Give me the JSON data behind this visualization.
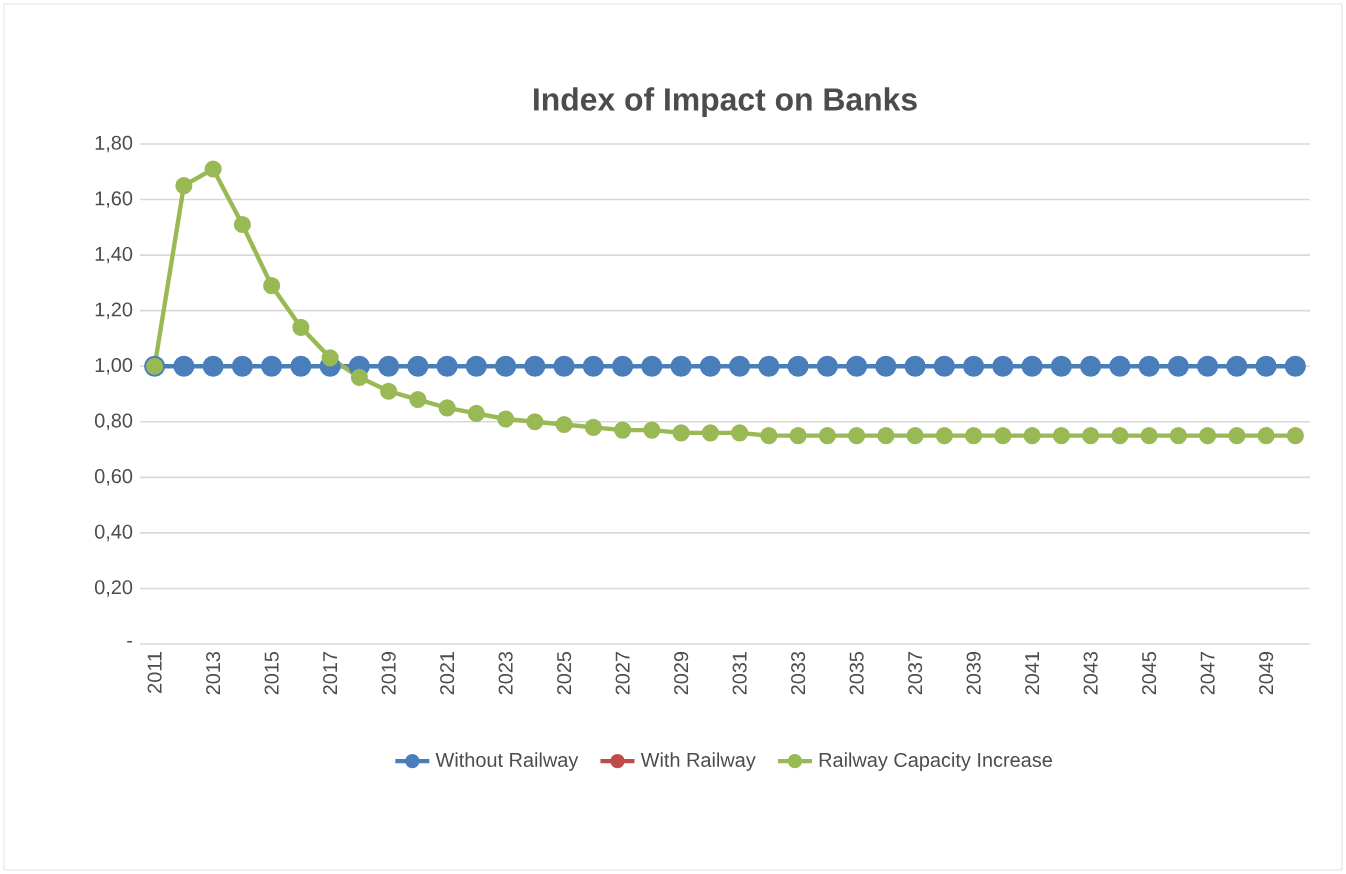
{
  "chart_data": {
    "type": "line",
    "title": "Index of Impact on Banks",
    "categories": [
      "2011",
      null,
      "2013",
      null,
      "2015",
      null,
      "2017",
      null,
      "2019",
      null,
      "2021",
      null,
      "2023",
      null,
      "2025",
      null,
      "2027",
      null,
      "2029",
      null,
      "2031",
      null,
      "2033",
      null,
      "2035",
      null,
      "2037",
      null,
      "2039",
      null,
      "2041",
      null,
      "2043",
      null,
      "2045",
      null,
      "2047",
      null,
      "2049",
      null
    ],
    "series": [
      {
        "name": "Without Railway",
        "color": "#4a7ebb",
        "values": [
          1,
          1,
          1,
          1,
          1,
          1,
          1,
          1,
          1,
          1,
          1,
          1,
          1,
          1,
          1,
          1,
          1,
          1,
          1,
          1,
          1,
          1,
          1,
          1,
          1,
          1,
          1,
          1,
          1,
          1,
          1,
          1,
          1,
          1,
          1,
          1,
          1,
          1,
          1,
          1
        ]
      },
      {
        "name": "With Railway",
        "color": "#be4b48",
        "values": [
          null,
          null,
          null,
          null,
          null,
          null,
          null,
          null,
          null,
          null,
          null,
          null,
          null,
          null,
          null,
          null,
          null,
          null,
          null,
          null,
          null,
          null,
          null,
          null,
          null,
          null,
          null,
          null,
          null,
          null,
          null,
          null,
          null,
          null,
          null,
          null,
          null,
          null,
          null,
          null
        ]
      },
      {
        "name": "Railway Capacity Increase",
        "color": "#98b954",
        "values": [
          1.0,
          1.65,
          1.71,
          1.51,
          1.29,
          1.14,
          1.03,
          0.96,
          0.91,
          0.88,
          0.85,
          0.83,
          0.81,
          0.8,
          0.79,
          0.78,
          0.77,
          0.77,
          0.76,
          0.76,
          0.76,
          0.75,
          0.75,
          0.75,
          0.75,
          0.75,
          0.75,
          0.75,
          0.75,
          0.75,
          0.75,
          0.75,
          0.75,
          0.75,
          0.75,
          0.75,
          0.75,
          0.75,
          0.75,
          0.75
        ]
      }
    ],
    "ylim": [
      0,
      1.8
    ],
    "yticks": [
      {
        "value": 0,
        "label": "-"
      },
      {
        "value": 0.2,
        "label": "0,20"
      },
      {
        "value": 0.4,
        "label": "0,40"
      },
      {
        "value": 0.6,
        "label": "0,60"
      },
      {
        "value": 0.8,
        "label": "0,80"
      },
      {
        "value": 1.0,
        "label": "1,00"
      },
      {
        "value": 1.2,
        "label": "1,20"
      },
      {
        "value": 1.4,
        "label": "1,40"
      },
      {
        "value": 1.6,
        "label": "1,60"
      },
      {
        "value": 1.8,
        "label": "1,80"
      }
    ],
    "grid": "y",
    "legend": "bottom",
    "marker": "circle",
    "line_style": "solid"
  }
}
